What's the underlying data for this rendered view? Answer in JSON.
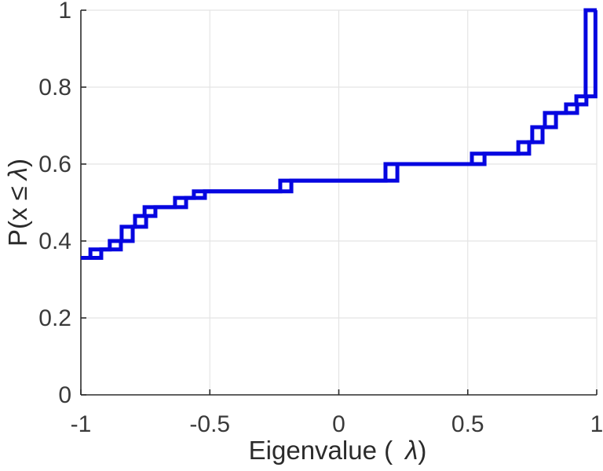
{
  "figure": {
    "background_color": "#ffffff",
    "line_color": "#0606e0",
    "axis_color": "#2b2b2b",
    "grid_color": "#e4e4e4",
    "tick_label_color": "#3a3a3a"
  },
  "chart_data": {
    "type": "line",
    "subtype": "empirical-cdf-stairs",
    "title": "",
    "xlabel": "Eigenvalue ( λ)",
    "ylabel": "P(x ≤ λ)",
    "xlabel_prefix": "Eigenvalue (",
    "xlabel_symbol": "λ",
    "xlabel_suffix": ")",
    "ylabel_prefix": "P(x ≤",
    "ylabel_symbol": "λ",
    "ylabel_suffix": ")",
    "xlim": [
      -1,
      1
    ],
    "ylim": [
      0,
      1
    ],
    "x_ticks": [
      -1,
      -0.5,
      0,
      0.5,
      1
    ],
    "x_tick_labels": [
      "-1",
      "-0.5",
      "0",
      "0.5",
      "1"
    ],
    "y_ticks": [
      0,
      0.2,
      0.4,
      0.6,
      0.8,
      1
    ],
    "y_tick_labels": [
      "0",
      "0.2",
      "0.4",
      "0.6",
      "0.8",
      "1"
    ],
    "grid": true,
    "legend": "none",
    "series": [
      {
        "name": "ecdf-step-lower-edge",
        "x_start": -1.0,
        "start_level": 0.356,
        "x_end": 1.0,
        "jumps": [
          [
            -0.963,
            0.378
          ],
          [
            -0.888,
            0.4
          ],
          [
            -0.842,
            0.437
          ],
          [
            -0.79,
            0.465
          ],
          [
            -0.753,
            0.488
          ],
          [
            -0.635,
            0.512
          ],
          [
            -0.562,
            0.529
          ],
          [
            -0.227,
            0.557
          ],
          [
            0.181,
            0.6
          ],
          [
            0.516,
            0.627
          ],
          [
            0.696,
            0.657
          ],
          [
            0.75,
            0.696
          ],
          [
            0.799,
            0.733
          ],
          [
            0.881,
            0.755
          ],
          [
            0.921,
            0.776
          ],
          [
            0.957,
            1.0
          ]
        ]
      },
      {
        "name": "ecdf-step-upper-edge",
        "x_start": -1.0,
        "start_level": 0.356,
        "x_end": 1.0,
        "jumps": [
          [
            -0.921,
            0.378
          ],
          [
            -0.845,
            0.4
          ],
          [
            -0.799,
            0.437
          ],
          [
            -0.747,
            0.465
          ],
          [
            -0.711,
            0.488
          ],
          [
            -0.592,
            0.512
          ],
          [
            -0.519,
            0.529
          ],
          [
            -0.184,
            0.557
          ],
          [
            0.227,
            0.6
          ],
          [
            0.565,
            0.627
          ],
          [
            0.738,
            0.657
          ],
          [
            0.79,
            0.696
          ],
          [
            0.842,
            0.733
          ],
          [
            0.924,
            0.755
          ],
          [
            0.96,
            0.776
          ],
          [
            0.995,
            1.0
          ]
        ]
      }
    ]
  }
}
